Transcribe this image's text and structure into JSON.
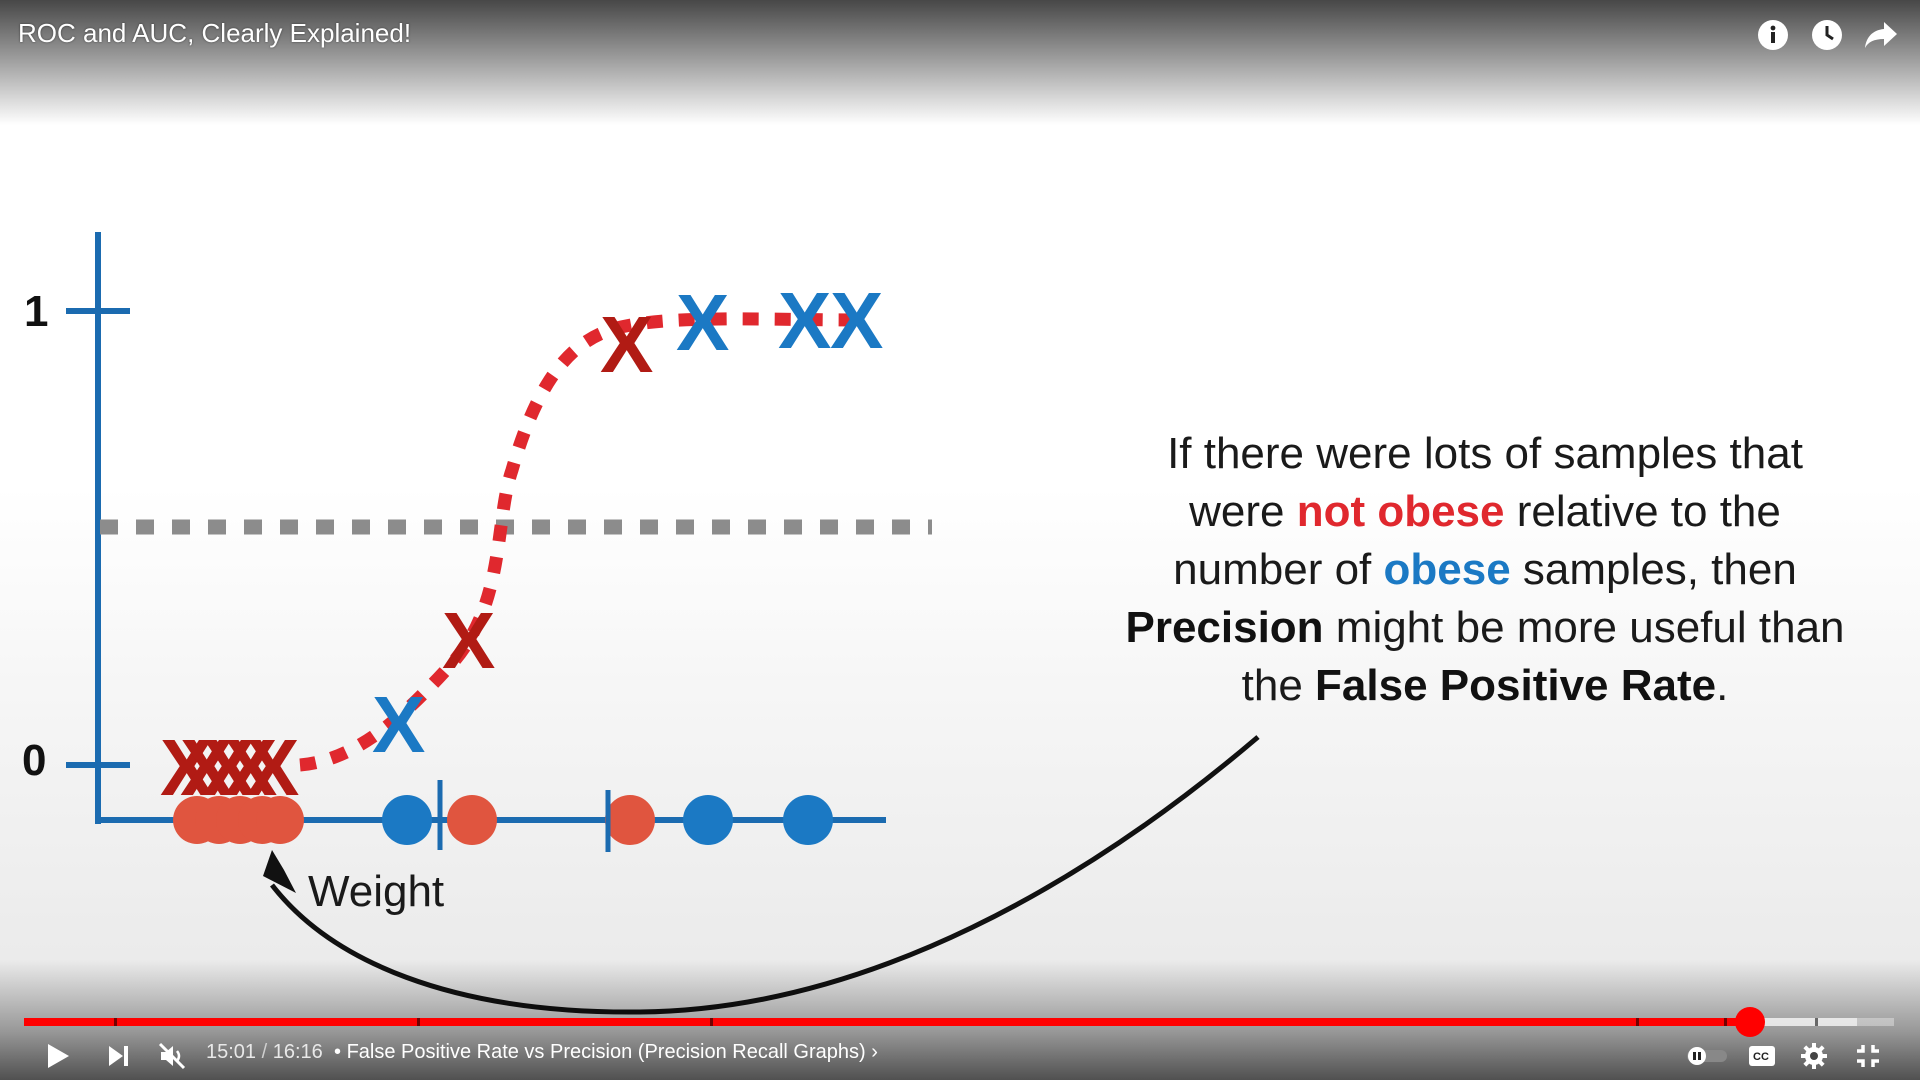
{
  "video": {
    "title": "ROC and AUC, Clearly Explained!"
  },
  "top_actions": [
    {
      "name": "info-icon"
    },
    {
      "name": "clock-icon"
    },
    {
      "name": "share-icon"
    }
  ],
  "figure": {
    "y_tick_1": "1",
    "y_tick_0": "0",
    "x_label": "Weight",
    "x_marker": "X",
    "colors": {
      "axis": "#1b6bb0",
      "red": "#b11b14",
      "blue": "#1b79c4",
      "threshold": "#8c8c8c",
      "curve": "#e0282e"
    }
  },
  "caption": {
    "line1": "If there were lots of samples that",
    "line2_a": "were ",
    "line2_red": "not obese",
    "line2_b": " relative to the",
    "line3_a": "number of ",
    "line3_blue": "obese",
    "line3_b": " samples, then",
    "line4_bold": "Precision",
    "line4_b": " might be more useful than",
    "line5_a": "the ",
    "line5_bold": "False Positive Rate",
    "line5_b": "."
  },
  "player": {
    "current_time": "15:01",
    "separator": "/",
    "duration": "16:16",
    "chapter_bullet": "•",
    "chapter": "False Positive Rate vs Precision (Precision Recall Graphs)",
    "chapter_chevron": "›",
    "progress_fraction": 0.923,
    "buffered_fraction": 0.98,
    "chapter_gaps_fraction": [
      0.048,
      0.21,
      0.367,
      0.862,
      0.909,
      0.958
    ]
  },
  "controls": [
    {
      "name": "play-icon"
    },
    {
      "name": "next-icon"
    },
    {
      "name": "mute-icon"
    },
    {
      "name": "autoplay-toggle"
    },
    {
      "name": "subtitles-icon"
    },
    {
      "name": "settings-icon"
    },
    {
      "name": "exit-fullscreen-icon"
    }
  ]
}
